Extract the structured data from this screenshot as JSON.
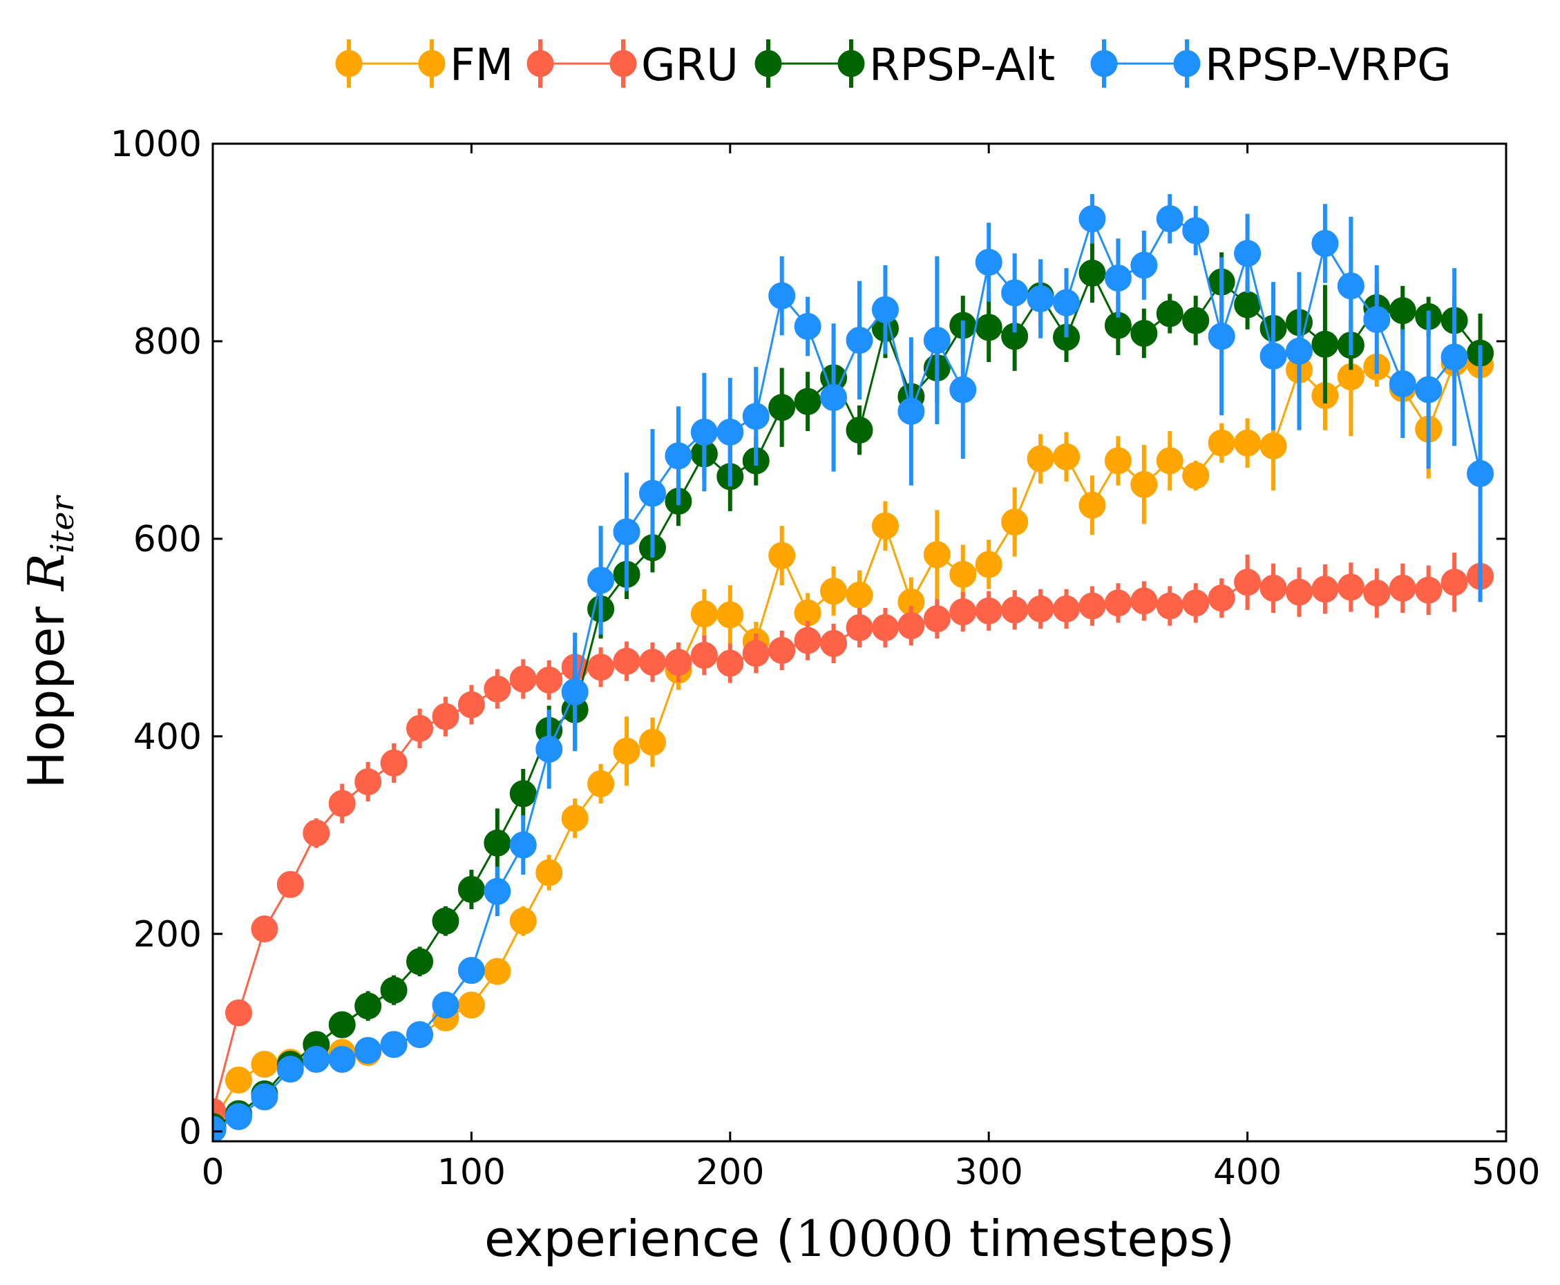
{
  "chart_data": {
    "type": "line",
    "title": "",
    "xlabel_prefix": "experience (",
    "xlabel_math": "10000",
    "xlabel_suffix": " timesteps)",
    "ylabel_prefix": "Hopper ",
    "ylabel_math": "R",
    "ylabel_sub": "iter",
    "xlim": [
      0,
      500
    ],
    "ylim": [
      -10,
      1000
    ],
    "xticks": [
      0,
      100,
      200,
      300,
      400,
      500
    ],
    "yticks": [
      0,
      200,
      400,
      600,
      800,
      1000
    ],
    "grid": false,
    "legend_position": "top",
    "x": [
      0,
      10,
      20,
      30,
      40,
      50,
      60,
      70,
      80,
      90,
      100,
      110,
      120,
      130,
      140,
      150,
      160,
      170,
      180,
      190,
      200,
      210,
      220,
      230,
      240,
      250,
      260,
      270,
      280,
      290,
      300,
      310,
      320,
      330,
      340,
      350,
      360,
      370,
      380,
      390,
      400,
      410,
      420,
      430,
      440,
      450,
      460,
      470,
      480,
      490
    ],
    "series": [
      {
        "name": "FM",
        "color": "#FFA500",
        "values": [
          10,
          52,
          68,
          70,
          75,
          80,
          80,
          88,
          98,
          115,
          128,
          162,
          213,
          262,
          317,
          352,
          385,
          394,
          467,
          524,
          523,
          496,
          583,
          525,
          547,
          543,
          613,
          536,
          584,
          564,
          574,
          617,
          681,
          683,
          634,
          679,
          655,
          679,
          664,
          697,
          697,
          694,
          771,
          745,
          764,
          774,
          752,
          711,
          778,
          776
        ],
        "errors": [
          3,
          8,
          8,
          8,
          8,
          8,
          8,
          8,
          8,
          10,
          12,
          12,
          15,
          18,
          20,
          20,
          35,
          25,
          20,
          25,
          30,
          20,
          30,
          20,
          25,
          25,
          25,
          25,
          45,
          30,
          25,
          35,
          25,
          25,
          30,
          25,
          40,
          30,
          15,
          20,
          25,
          45,
          25,
          35,
          60,
          20,
          25,
          50,
          20,
          25
        ]
      },
      {
        "name": "GRU",
        "color": "#FF6347",
        "values": [
          20,
          120,
          205,
          250,
          302,
          332,
          354,
          373,
          408,
          420,
          432,
          448,
          458,
          457,
          470,
          470,
          476,
          475,
          475,
          482,
          474,
          484,
          487,
          497,
          494,
          510,
          510,
          512,
          519,
          526,
          527,
          528,
          529,
          529,
          532,
          535,
          537,
          532,
          535,
          540,
          556,
          550,
          546,
          549,
          551,
          545,
          550,
          548,
          556,
          562
        ],
        "errors": [
          5,
          10,
          10,
          10,
          15,
          20,
          20,
          20,
          20,
          20,
          20,
          20,
          20,
          20,
          20,
          20,
          20,
          20,
          20,
          20,
          20,
          20,
          20,
          20,
          20,
          20,
          20,
          20,
          20,
          20,
          20,
          20,
          20,
          20,
          20,
          20,
          20,
          20,
          20,
          20,
          28,
          25,
          25,
          25,
          25,
          25,
          25,
          25,
          30,
          25
        ]
      },
      {
        "name": "RPSP-Alt",
        "color": "#006400",
        "values": [
          5,
          18,
          38,
          68,
          88,
          108,
          127,
          143,
          172,
          213,
          245,
          292,
          342,
          406,
          427,
          529,
          564,
          591,
          638,
          686,
          663,
          679,
          733,
          739,
          763,
          710,
          813,
          744,
          773,
          816,
          814,
          805,
          846,
          804,
          869,
          816,
          808,
          828,
          821,
          860,
          837,
          813,
          819,
          797,
          796,
          834,
          831,
          825,
          821,
          788
        ],
        "errors": [
          3,
          8,
          8,
          8,
          10,
          12,
          15,
          15,
          15,
          15,
          20,
          35,
          25,
          25,
          40,
          30,
          25,
          25,
          25,
          25,
          35,
          25,
          40,
          30,
          30,
          25,
          30,
          25,
          35,
          30,
          35,
          35,
          30,
          25,
          30,
          30,
          25,
          20,
          25,
          30,
          25,
          25,
          30,
          60,
          25,
          25,
          25,
          20,
          25,
          40
        ]
      },
      {
        "name": "RPSP-VRPG",
        "color": "#1E90FF",
        "values": [
          2,
          15,
          35,
          63,
          73,
          73,
          82,
          88,
          98,
          128,
          163,
          243,
          290,
          387,
          445,
          558,
          607,
          646,
          684,
          708,
          708,
          724,
          846,
          815,
          743,
          801,
          832,
          729,
          801,
          751,
          880,
          849,
          843,
          839,
          924,
          864,
          877,
          924,
          912,
          805,
          889,
          785,
          790,
          899,
          856,
          822,
          757,
          751,
          784,
          666
        ],
        "errors": [
          3,
          8,
          8,
          8,
          8,
          8,
          8,
          8,
          8,
          10,
          12,
          25,
          30,
          40,
          60,
          55,
          60,
          65,
          50,
          60,
          55,
          50,
          40,
          30,
          75,
          60,
          45,
          75,
          85,
          70,
          40,
          40,
          40,
          35,
          25,
          40,
          35,
          25,
          25,
          80,
          40,
          75,
          80,
          40,
          70,
          55,
          55,
          80,
          90,
          130
        ]
      }
    ]
  }
}
